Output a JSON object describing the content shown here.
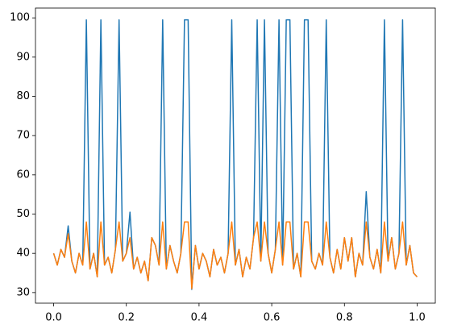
{
  "chart_data": {
    "type": "line",
    "x": [
      0,
      0.01,
      0.02,
      0.03,
      0.04,
      0.05,
      0.06,
      0.07,
      0.08,
      0.09,
      0.1,
      0.11,
      0.12,
      0.13,
      0.14,
      0.15,
      0.16,
      0.17,
      0.18,
      0.19,
      0.2,
      0.21,
      0.22,
      0.23,
      0.24,
      0.25,
      0.26,
      0.27,
      0.28,
      0.29,
      0.3,
      0.31,
      0.32,
      0.33,
      0.34,
      0.35,
      0.36,
      0.37,
      0.38,
      0.39,
      0.4,
      0.41,
      0.42,
      0.43,
      0.44,
      0.45,
      0.46,
      0.47,
      0.48,
      0.49,
      0.5,
      0.51,
      0.52,
      0.53,
      0.54,
      0.55,
      0.56,
      0.57,
      0.58,
      0.59,
      0.6,
      0.61,
      0.62,
      0.63,
      0.64,
      0.65,
      0.66,
      0.67,
      0.68,
      0.69,
      0.7,
      0.71,
      0.72,
      0.73,
      0.74,
      0.75,
      0.76,
      0.77,
      0.78,
      0.79,
      0.8,
      0.81,
      0.82,
      0.83,
      0.84,
      0.85,
      0.86,
      0.87,
      0.88,
      0.89,
      0.9,
      0.91,
      0.92,
      0.93,
      0.94,
      0.95,
      0.96,
      0.97,
      0.98,
      0.99,
      1
    ],
    "series": [
      {
        "color": "#1f77b4",
        "values": [
          40,
          37,
          41,
          39,
          47,
          38,
          35,
          40,
          37,
          99.5,
          36,
          40,
          34,
          99.5,
          37,
          39,
          35,
          41,
          99.5,
          38,
          40,
          50.5,
          36,
          39,
          35,
          38,
          33,
          44,
          42,
          37,
          99.5,
          36,
          42,
          38,
          35,
          40,
          99.5,
          99.5,
          30.8,
          42,
          36,
          40,
          38,
          34,
          41,
          37,
          39,
          35,
          40,
          99.5,
          37,
          41,
          34,
          39,
          36,
          44,
          99.5,
          38,
          99.5,
          40,
          35,
          41,
          99.5,
          37,
          99.5,
          99.5,
          36,
          40,
          34,
          99.5,
          99.5,
          38,
          36,
          40,
          37,
          99.5,
          39,
          35,
          41,
          36,
          44,
          38,
          44,
          34,
          40,
          37,
          55.7,
          39,
          36,
          41,
          35,
          99.5,
          38,
          44,
          36,
          40,
          99.5,
          37,
          42,
          35,
          34
        ]
      },
      {
        "color": "#ff7f0e",
        "values": [
          40,
          37,
          41,
          39,
          45,
          38,
          35,
          40,
          37,
          48,
          36,
          40,
          34,
          48,
          37,
          39,
          35,
          41,
          48,
          38,
          40,
          44,
          36,
          39,
          35,
          38,
          33,
          44,
          42,
          37,
          48,
          36,
          42,
          38,
          35,
          40,
          48,
          48,
          31,
          42,
          36,
          40,
          38,
          34,
          41,
          37,
          39,
          35,
          40,
          48,
          37,
          41,
          34,
          39,
          36,
          44,
          48,
          38,
          48,
          40,
          35,
          41,
          48,
          37,
          48,
          48,
          36,
          40,
          34,
          48,
          48,
          38,
          36,
          40,
          37,
          48,
          39,
          35,
          41,
          36,
          44,
          38,
          44,
          34,
          40,
          37,
          48,
          39,
          36,
          41,
          35,
          48,
          38,
          44,
          36,
          40,
          48,
          37,
          42,
          35,
          34
        ]
      }
    ],
    "xlim": [
      -0.05,
      1.05
    ],
    "ylim": [
      27.3,
      102.5
    ],
    "xticks": [
      {
        "value": 0,
        "label": "0.0"
      },
      0.2,
      0.4,
      0.6,
      0.8,
      {
        "value": 1,
        "label": "1.0"
      }
    ],
    "yticks": [
      30,
      40,
      50,
      60,
      70,
      80,
      90,
      100
    ]
  }
}
